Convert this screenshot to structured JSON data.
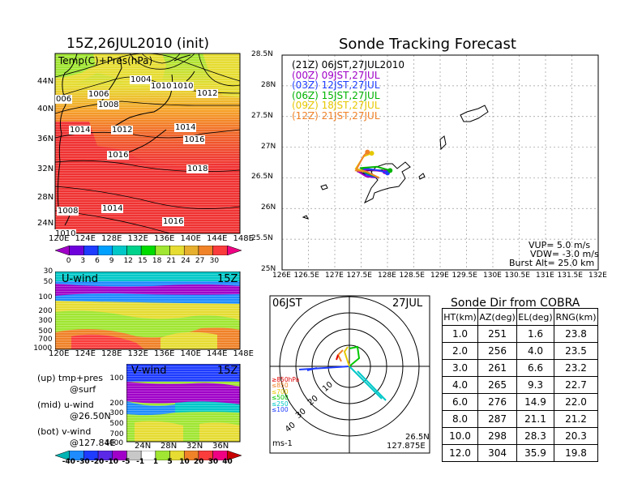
{
  "left": {
    "title": "15Z,26JUL2010 (init)",
    "map_label": "Temp(C)+Pres(hPa)",
    "lat_labels": [
      "44N",
      "40N",
      "36N",
      "32N",
      "28N",
      "24N"
    ],
    "lon_labels": [
      "120E",
      "124E",
      "128E",
      "132E",
      "136E",
      "140E",
      "144E",
      "148E"
    ],
    "isobar_labels": [
      "1004",
      "1006",
      "1010",
      "1008",
      "1010",
      "1012",
      "1014",
      "1012",
      "1014",
      "1016",
      "1016",
      "1018",
      "1008",
      "1014",
      "1016",
      "1010",
      "006"
    ],
    "temp_colorbar": [
      "0",
      "3",
      "6",
      "9",
      "12",
      "15",
      "18",
      "21",
      "24",
      "27",
      "30"
    ],
    "temp_colors": [
      "#a000c8",
      "#6e00dc",
      "#1e3cff",
      "#00a0ff",
      "#00c8c8",
      "#00d28c",
      "#00dc00",
      "#a0e632",
      "#e6dc32",
      "#e6af2d",
      "#f08228",
      "#fa3c3c",
      "#f00082"
    ],
    "uwind": {
      "label": "U-wind",
      "time": "15Z",
      "p_labels": [
        "30",
        "50",
        "100",
        "200",
        "300",
        "500",
        "700",
        "1000"
      ],
      "lon_labels": [
        "120E",
        "124E",
        "128E",
        "132E",
        "136E",
        "140E",
        "144E",
        "148E"
      ]
    },
    "vwind": {
      "label": "V-wind",
      "time": "15Z",
      "p_labels": [
        "100",
        "200",
        "300",
        "500",
        "700",
        "1000"
      ],
      "lat_labels": [
        "24N",
        "28N",
        "32N",
        "36N"
      ]
    },
    "notes": [
      {
        "a": "(up)  tmp+pres",
        "b": "@surf"
      },
      {
        "a": "(mid)  u-wind",
        "b": "@26.50N"
      },
      {
        "a": "(bot)  v-wind",
        "b": "@127.84E"
      }
    ],
    "wind_colorbar": [
      "-40",
      "-30",
      "-20",
      "-10",
      "-5",
      "-1",
      "1",
      "5",
      "10",
      "20",
      "30",
      "40"
    ],
    "wind_colors": [
      "#00b4b4",
      "#1e8cff",
      "#1e3cff",
      "#5a28e6",
      "#a000c8",
      "#c8c8c8",
      "#ffffff",
      "#a0e632",
      "#e6dc32",
      "#f08228",
      "#fa3c3c",
      "#f00082",
      "#c80000"
    ]
  },
  "track": {
    "title": "Sonde Tracking Forecast",
    "lat_labels": [
      "28.5N",
      "28N",
      "27.5N",
      "27N",
      "26.5N",
      "26N",
      "25.5N",
      "25N"
    ],
    "lon_labels": [
      "126E",
      "126.5E",
      "127E",
      "127.5E",
      "128E",
      "128.5E",
      "129E",
      "129.5E",
      "130E",
      "130.5E",
      "131E",
      "131.5E",
      "132E"
    ],
    "legend": [
      {
        "text": "(21Z)  06JST,27JUL2010",
        "color": "#000000"
      },
      {
        "text": "(00Z)  09JST,27JUL",
        "color": "#a000c8"
      },
      {
        "text": "(03Z)  12JST,27JUL",
        "color": "#1e3cff"
      },
      {
        "text": "(06Z)  15JST,27JUL",
        "color": "#00b400"
      },
      {
        "text": "(09Z)  18JST,27JUL",
        "color": "#e6c800"
      },
      {
        "text": "(12Z)  21JST,27JUL",
        "color": "#f08228"
      }
    ],
    "params": [
      "VUP=  5.0  m/s",
      "VDW= -3.0  m/s",
      "Burst Alt=  25.0  km"
    ]
  },
  "polar": {
    "left_label": "06JST",
    "right_label": "27JUL",
    "ring_labels": [
      "10",
      "20",
      "30",
      "40"
    ],
    "level_legend": [
      {
        "text": "≥850hPa",
        "color": "#e00000"
      },
      {
        "text": "≤850",
        "color": "#f08228"
      },
      {
        "text": "≤700",
        "color": "#e6c800"
      },
      {
        "text": "≤500",
        "color": "#00c800"
      },
      {
        "text": "≤250",
        "color": "#00c8c8"
      },
      {
        "text": "≤100",
        "color": "#1e3cff"
      }
    ],
    "unit": "ms-1",
    "loc_lat": "26.5N",
    "loc_lon": "127.875E"
  },
  "table": {
    "title": "Sonde Dir from COBRA",
    "headers": [
      "HT(km)",
      "AZ(deg)",
      "EL(deg)",
      "RNG(km)"
    ],
    "rows": [
      [
        "1.0",
        "251",
        "1.6",
        "23.8"
      ],
      [
        "2.0",
        "256",
        "4.0",
        "23.5"
      ],
      [
        "3.0",
        "261",
        "6.6",
        "23.2"
      ],
      [
        "4.0",
        "265",
        "9.3",
        "22.7"
      ],
      [
        "6.0",
        "276",
        "14.9",
        "22.0"
      ],
      [
        "8.0",
        "287",
        "21.1",
        "21.2"
      ],
      [
        "10.0",
        "298",
        "28.3",
        "20.3"
      ],
      [
        "12.0",
        "304",
        "35.9",
        "19.8"
      ]
    ]
  },
  "chart_data": [
    {
      "type": "table",
      "title": "Sonde Dir from COBRA",
      "columns": [
        "HT(km)",
        "AZ(deg)",
        "EL(deg)",
        "RNG(km)"
      ],
      "rows": [
        [
          1.0,
          251,
          1.6,
          23.8
        ],
        [
          2.0,
          256,
          4.0,
          23.5
        ],
        [
          3.0,
          261,
          6.6,
          23.2
        ],
        [
          4.0,
          265,
          9.3,
          22.7
        ],
        [
          6.0,
          276,
          14.9,
          22.0
        ],
        [
          8.0,
          287,
          21.1,
          21.2
        ],
        [
          10.0,
          298,
          28.3,
          20.3
        ],
        [
          12.0,
          304,
          35.9,
          19.8
        ]
      ]
    },
    {
      "type": "line",
      "title": "Sonde Tracking Forecast",
      "xlim": [
        126,
        132
      ],
      "ylim": [
        25,
        28.5
      ],
      "series": [
        {
          "name": "(21Z)  06JST,27JUL2010",
          "x": [
            127.84,
            127.6,
            127.45,
            127.5,
            127.7,
            127.9,
            128.0
          ],
          "y": [
            26.5,
            26.55,
            26.6,
            26.62,
            26.62,
            26.62,
            26.6
          ]
        },
        {
          "name": "(00Z)  09JST,27JUL",
          "x": [
            127.84,
            127.6,
            127.45,
            127.5,
            127.7,
            127.95
          ],
          "y": [
            26.5,
            26.52,
            26.6,
            26.63,
            26.63,
            26.6
          ]
        },
        {
          "name": "(03Z)  12JST,27JUL",
          "x": [
            127.84,
            127.6,
            127.5,
            127.6,
            127.85,
            128.0
          ],
          "y": [
            26.5,
            26.55,
            26.65,
            26.65,
            26.62,
            26.58
          ]
        },
        {
          "name": "(06Z)  15JST,27JUL",
          "x": [
            127.84,
            127.55,
            127.5,
            127.8,
            128.05
          ],
          "y": [
            26.5,
            26.6,
            26.66,
            26.68,
            26.62
          ]
        },
        {
          "name": "(09Z)  18JST,27JUL",
          "x": [
            127.84,
            127.6,
            127.4,
            127.55,
            127.7
          ],
          "y": [
            26.5,
            26.6,
            26.65,
            26.85,
            26.9
          ]
        },
        {
          "name": "(12Z)  21JST,27JUL",
          "x": [
            127.84,
            127.6,
            127.4,
            127.55,
            127.62
          ],
          "y": [
            26.5,
            26.6,
            26.62,
            26.86,
            26.92
          ]
        }
      ]
    }
  ]
}
